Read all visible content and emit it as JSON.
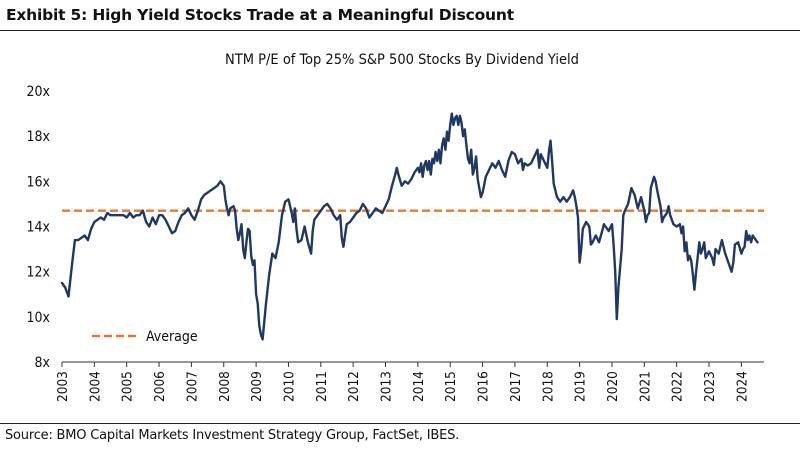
{
  "header": {
    "exhibit_title": "Exhibit 5: High Yield Stocks Trade at a Meaningful Discount"
  },
  "footer": {
    "source": "Source: BMO Capital Markets Investment Strategy Group, FactSet, IBES."
  },
  "colors": {
    "line": "#1f3864",
    "average": "#e8772e",
    "axis": "#333333"
  },
  "chart_data": {
    "type": "line",
    "title": "NTM P/E of Top 25% S&P 500 Stocks By Dividend Yield",
    "xlabel": "",
    "ylabel": "",
    "xlim": [
      2003,
      2024.7
    ],
    "ylim": [
      8,
      20
    ],
    "y_ticks": [
      8,
      10,
      12,
      14,
      16,
      18,
      20
    ],
    "y_tick_labels": [
      "8x",
      "10x",
      "12x",
      "14x",
      "16x",
      "18x",
      "20x"
    ],
    "x_ticks": [
      2003,
      2004,
      2005,
      2006,
      2007,
      2008,
      2009,
      2010,
      2011,
      2012,
      2013,
      2014,
      2015,
      2016,
      2017,
      2018,
      2019,
      2020,
      2021,
      2022,
      2023,
      2024
    ],
    "x_tick_labels": [
      "2003",
      "2004",
      "2005",
      "2006",
      "2007",
      "2008",
      "2009",
      "2010",
      "2011",
      "2012",
      "2013",
      "2014",
      "2015",
      "2016",
      "2017",
      "2018",
      "2019",
      "2020",
      "2021",
      "2022",
      "2023",
      "2024"
    ],
    "grid": false,
    "legend": {
      "placement": "bottom-left",
      "entries": [
        "Average"
      ]
    },
    "average_value": 14.7,
    "series": [
      {
        "name": "NTM P/E",
        "points": [
          [
            2003.0,
            11.5
          ],
          [
            2003.1,
            11.3
          ],
          [
            2003.2,
            10.9
          ],
          [
            2003.3,
            12.2
          ],
          [
            2003.4,
            13.4
          ],
          [
            2003.5,
            13.4
          ],
          [
            2003.6,
            13.5
          ],
          [
            2003.7,
            13.6
          ],
          [
            2003.8,
            13.4
          ],
          [
            2003.9,
            13.9
          ],
          [
            2004.0,
            14.2
          ],
          [
            2004.1,
            14.3
          ],
          [
            2004.2,
            14.4
          ],
          [
            2004.3,
            14.3
          ],
          [
            2004.4,
            14.6
          ],
          [
            2004.5,
            14.5
          ],
          [
            2004.6,
            14.5
          ],
          [
            2004.7,
            14.5
          ],
          [
            2004.8,
            14.5
          ],
          [
            2004.9,
            14.5
          ],
          [
            2005.0,
            14.4
          ],
          [
            2005.1,
            14.6
          ],
          [
            2005.2,
            14.4
          ],
          [
            2005.3,
            14.5
          ],
          [
            2005.4,
            14.5
          ],
          [
            2005.5,
            14.7
          ],
          [
            2005.6,
            14.2
          ],
          [
            2005.7,
            14.0
          ],
          [
            2005.8,
            14.4
          ],
          [
            2005.9,
            14.1
          ],
          [
            2006.0,
            14.5
          ],
          [
            2006.1,
            14.5
          ],
          [
            2006.2,
            14.3
          ],
          [
            2006.3,
            14.0
          ],
          [
            2006.4,
            13.7
          ],
          [
            2006.5,
            13.8
          ],
          [
            2006.6,
            14.2
          ],
          [
            2006.7,
            14.5
          ],
          [
            2006.8,
            14.6
          ],
          [
            2006.9,
            14.8
          ],
          [
            2007.0,
            14.5
          ],
          [
            2007.1,
            14.3
          ],
          [
            2007.2,
            14.7
          ],
          [
            2007.3,
            15.2
          ],
          [
            2007.4,
            15.4
          ],
          [
            2007.5,
            15.5
          ],
          [
            2007.6,
            15.6
          ],
          [
            2007.7,
            15.7
          ],
          [
            2007.8,
            15.8
          ],
          [
            2007.9,
            16.0
          ],
          [
            2008.0,
            15.8
          ],
          [
            2008.05,
            15.2
          ],
          [
            2008.1,
            14.8
          ],
          [
            2008.15,
            14.5
          ],
          [
            2008.2,
            14.8
          ],
          [
            2008.3,
            14.9
          ],
          [
            2008.35,
            14.7
          ],
          [
            2008.4,
            13.9
          ],
          [
            2008.45,
            13.4
          ],
          [
            2008.5,
            13.7
          ],
          [
            2008.55,
            14.1
          ],
          [
            2008.6,
            13.0
          ],
          [
            2008.65,
            12.6
          ],
          [
            2008.7,
            13.3
          ],
          [
            2008.75,
            13.9
          ],
          [
            2008.8,
            13.8
          ],
          [
            2008.85,
            12.7
          ],
          [
            2008.9,
            12.3
          ],
          [
            2008.95,
            12.5
          ],
          [
            2009.0,
            11.0
          ],
          [
            2009.05,
            10.6
          ],
          [
            2009.1,
            9.6
          ],
          [
            2009.15,
            9.2
          ],
          [
            2009.2,
            9.0
          ],
          [
            2009.3,
            10.5
          ],
          [
            2009.4,
            11.8
          ],
          [
            2009.5,
            12.8
          ],
          [
            2009.6,
            12.6
          ],
          [
            2009.7,
            13.3
          ],
          [
            2009.8,
            14.5
          ],
          [
            2009.9,
            15.1
          ],
          [
            2010.0,
            15.2
          ],
          [
            2010.1,
            14.6
          ],
          [
            2010.15,
            14.2
          ],
          [
            2010.2,
            14.8
          ],
          [
            2010.25,
            13.9
          ],
          [
            2010.3,
            13.3
          ],
          [
            2010.4,
            13.4
          ],
          [
            2010.5,
            14.0
          ],
          [
            2010.6,
            13.3
          ],
          [
            2010.7,
            12.8
          ],
          [
            2010.75,
            13.8
          ],
          [
            2010.8,
            14.3
          ],
          [
            2010.9,
            14.5
          ],
          [
            2011.0,
            14.7
          ],
          [
            2011.1,
            14.9
          ],
          [
            2011.2,
            15.0
          ],
          [
            2011.3,
            14.8
          ],
          [
            2011.4,
            14.5
          ],
          [
            2011.5,
            14.3
          ],
          [
            2011.6,
            14.5
          ],
          [
            2011.65,
            13.5
          ],
          [
            2011.7,
            13.1
          ],
          [
            2011.8,
            14.1
          ],
          [
            2011.9,
            14.2
          ],
          [
            2012.0,
            14.4
          ],
          [
            2012.1,
            14.6
          ],
          [
            2012.2,
            14.7
          ],
          [
            2012.3,
            15.0
          ],
          [
            2012.4,
            14.8
          ],
          [
            2012.5,
            14.4
          ],
          [
            2012.6,
            14.6
          ],
          [
            2012.7,
            14.8
          ],
          [
            2012.8,
            14.7
          ],
          [
            2012.9,
            14.6
          ],
          [
            2013.0,
            14.9
          ],
          [
            2013.1,
            15.2
          ],
          [
            2013.2,
            15.8
          ],
          [
            2013.3,
            16.3
          ],
          [
            2013.35,
            16.6
          ],
          [
            2013.4,
            16.3
          ],
          [
            2013.5,
            15.8
          ],
          [
            2013.6,
            16.0
          ],
          [
            2013.7,
            15.9
          ],
          [
            2013.8,
            16.1
          ],
          [
            2013.9,
            16.4
          ],
          [
            2014.0,
            16.6
          ],
          [
            2014.05,
            16.4
          ],
          [
            2014.1,
            16.8
          ],
          [
            2014.15,
            16.2
          ],
          [
            2014.2,
            16.7
          ],
          [
            2014.25,
            16.9
          ],
          [
            2014.3,
            16.5
          ],
          [
            2014.35,
            16.9
          ],
          [
            2014.4,
            16.3
          ],
          [
            2014.45,
            17.0
          ],
          [
            2014.5,
            16.8
          ],
          [
            2014.55,
            17.3
          ],
          [
            2014.6,
            16.9
          ],
          [
            2014.65,
            17.4
          ],
          [
            2014.7,
            16.8
          ],
          [
            2014.75,
            17.6
          ],
          [
            2014.8,
            17.9
          ],
          [
            2014.85,
            17.4
          ],
          [
            2014.9,
            18.2
          ],
          [
            2014.95,
            17.8
          ],
          [
            2015.0,
            18.5
          ],
          [
            2015.05,
            19.0
          ],
          [
            2015.1,
            18.5
          ],
          [
            2015.15,
            18.8
          ],
          [
            2015.2,
            18.9
          ],
          [
            2015.25,
            18.5
          ],
          [
            2015.3,
            18.9
          ],
          [
            2015.35,
            18.6
          ],
          [
            2015.4,
            18.0
          ],
          [
            2015.45,
            18.3
          ],
          [
            2015.5,
            17.6
          ],
          [
            2015.55,
            17.0
          ],
          [
            2015.6,
            16.8
          ],
          [
            2015.65,
            17.4
          ],
          [
            2015.7,
            16.3
          ],
          [
            2015.75,
            16.6
          ],
          [
            2015.8,
            17.1
          ],
          [
            2015.85,
            16.1
          ],
          [
            2015.9,
            15.7
          ],
          [
            2015.95,
            15.3
          ],
          [
            2016.0,
            15.5
          ],
          [
            2016.1,
            16.2
          ],
          [
            2016.2,
            16.5
          ],
          [
            2016.3,
            16.8
          ],
          [
            2016.4,
            16.6
          ],
          [
            2016.5,
            16.9
          ],
          [
            2016.6,
            16.5
          ],
          [
            2016.7,
            16.2
          ],
          [
            2016.8,
            16.9
          ],
          [
            2016.9,
            17.3
          ],
          [
            2017.0,
            17.2
          ],
          [
            2017.1,
            16.8
          ],
          [
            2017.2,
            17.0
          ],
          [
            2017.25,
            16.5
          ],
          [
            2017.3,
            16.8
          ],
          [
            2017.4,
            16.7
          ],
          [
            2017.5,
            16.8
          ],
          [
            2017.6,
            17.1
          ],
          [
            2017.7,
            17.4
          ],
          [
            2017.75,
            16.6
          ],
          [
            2017.8,
            17.2
          ],
          [
            2017.9,
            16.9
          ],
          [
            2018.0,
            16.6
          ],
          [
            2018.05,
            17.3
          ],
          [
            2018.1,
            17.8
          ],
          [
            2018.15,
            16.9
          ],
          [
            2018.2,
            15.9
          ],
          [
            2018.3,
            15.3
          ],
          [
            2018.4,
            15.1
          ],
          [
            2018.5,
            15.3
          ],
          [
            2018.6,
            15.1
          ],
          [
            2018.7,
            15.3
          ],
          [
            2018.8,
            15.6
          ],
          [
            2018.85,
            15.3
          ],
          [
            2018.9,
            14.9
          ],
          [
            2018.95,
            14.4
          ],
          [
            2019.0,
            12.4
          ],
          [
            2019.05,
            13.0
          ],
          [
            2019.1,
            13.9
          ],
          [
            2019.2,
            14.2
          ],
          [
            2019.3,
            14.0
          ],
          [
            2019.35,
            13.2
          ],
          [
            2019.4,
            13.3
          ],
          [
            2019.5,
            13.6
          ],
          [
            2019.6,
            13.3
          ],
          [
            2019.7,
            13.8
          ],
          [
            2019.75,
            14.1
          ],
          [
            2019.8,
            14.0
          ],
          [
            2019.9,
            13.8
          ],
          [
            2020.0,
            14.1
          ],
          [
            2020.05,
            13.2
          ],
          [
            2020.1,
            12.0
          ],
          [
            2020.15,
            9.9
          ],
          [
            2020.2,
            11.3
          ],
          [
            2020.3,
            13.0
          ],
          [
            2020.35,
            14.5
          ],
          [
            2020.4,
            14.7
          ],
          [
            2020.5,
            15.0
          ],
          [
            2020.6,
            15.7
          ],
          [
            2020.7,
            15.4
          ],
          [
            2020.8,
            14.8
          ],
          [
            2020.9,
            15.3
          ],
          [
            2021.0,
            14.7
          ],
          [
            2021.05,
            14.2
          ],
          [
            2021.1,
            14.5
          ],
          [
            2021.15,
            14.6
          ],
          [
            2021.2,
            15.7
          ],
          [
            2021.3,
            16.2
          ],
          [
            2021.35,
            16.0
          ],
          [
            2021.4,
            15.6
          ],
          [
            2021.5,
            14.9
          ],
          [
            2021.55,
            14.2
          ],
          [
            2021.6,
            14.4
          ],
          [
            2021.7,
            14.6
          ],
          [
            2021.75,
            14.9
          ],
          [
            2021.8,
            14.5
          ],
          [
            2021.9,
            14.1
          ],
          [
            2022.0,
            14.0
          ],
          [
            2022.1,
            14.1
          ],
          [
            2022.15,
            13.7
          ],
          [
            2022.2,
            14.0
          ],
          [
            2022.25,
            12.9
          ],
          [
            2022.3,
            13.3
          ],
          [
            2022.35,
            12.5
          ],
          [
            2022.4,
            12.7
          ],
          [
            2022.45,
            12.5
          ],
          [
            2022.5,
            11.9
          ],
          [
            2022.55,
            11.2
          ],
          [
            2022.6,
            12.0
          ],
          [
            2022.7,
            13.3
          ],
          [
            2022.75,
            12.8
          ],
          [
            2022.8,
            13.0
          ],
          [
            2022.85,
            13.3
          ],
          [
            2022.9,
            12.6
          ],
          [
            2023.0,
            12.9
          ],
          [
            2023.1,
            12.6
          ],
          [
            2023.15,
            12.3
          ],
          [
            2023.2,
            13.0
          ],
          [
            2023.3,
            12.8
          ],
          [
            2023.4,
            13.4
          ],
          [
            2023.5,
            12.8
          ],
          [
            2023.6,
            12.4
          ],
          [
            2023.7,
            12.0
          ],
          [
            2023.75,
            12.4
          ],
          [
            2023.8,
            13.2
          ],
          [
            2023.9,
            13.3
          ],
          [
            2024.0,
            12.8
          ],
          [
            2024.05,
            13.0
          ],
          [
            2024.1,
            13.1
          ],
          [
            2024.15,
            13.8
          ],
          [
            2024.2,
            13.4
          ],
          [
            2024.25,
            13.6
          ],
          [
            2024.3,
            13.3
          ],
          [
            2024.35,
            13.6
          ],
          [
            2024.4,
            13.5
          ],
          [
            2024.5,
            13.3
          ]
        ]
      }
    ]
  }
}
